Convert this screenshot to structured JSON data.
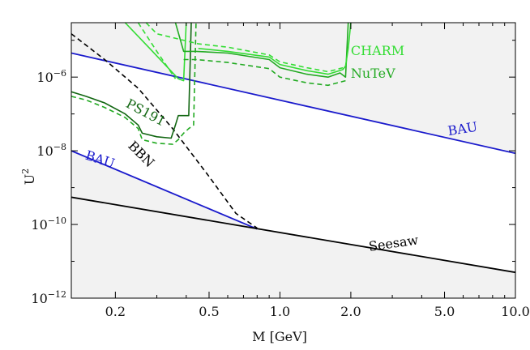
{
  "chart_data": {
    "type": "line",
    "title": "",
    "xlabel": "M [GeV]",
    "ylabel": "U",
    "ylabel_sup": "2",
    "x_scale": "log",
    "y_scale": "log",
    "xlim": [
      0.13,
      10.0
    ],
    "ylim": [
      1e-12,
      3e-05
    ],
    "grid": false,
    "x_ticks": [
      {
        "value": 0.2,
        "label": "0.2"
      },
      {
        "value": 0.5,
        "label": "0.5"
      },
      {
        "value": 1.0,
        "label": "1.0"
      },
      {
        "value": 2.0,
        "label": "2.0"
      },
      {
        "value": 5.0,
        "label": "5.0"
      },
      {
        "value": 10.0,
        "label": "10.0"
      }
    ],
    "y_ticks": [
      {
        "value": 1e-12,
        "base": "10",
        "exp": "−12"
      },
      {
        "value": 1e-10,
        "base": "10",
        "exp": "−10"
      },
      {
        "value": 1e-08,
        "base": "10",
        "exp": "−8"
      },
      {
        "value": 1e-06,
        "base": "10",
        "exp": "−6"
      }
    ],
    "colors": {
      "background_region": "#f2f2f2",
      "bau": "#1a1acc",
      "bbn": "#000000",
      "seesaw": "#000000",
      "charm": "#33dd33",
      "nutev": "#22aa22",
      "ps191": "#116611"
    },
    "series": [
      {
        "id": "bau-upper",
        "label": "BAU",
        "color": "#1a1acc",
        "dash": false,
        "points": [
          [
            0.13,
            4.5e-06
          ],
          [
            10.0,
            8.5e-09
          ]
        ]
      },
      {
        "id": "bau-lower",
        "label": "BAU",
        "color": "#1a1acc",
        "dash": false,
        "points": [
          [
            0.13,
            1e-08
          ],
          [
            0.8,
            7.5e-11
          ]
        ]
      },
      {
        "id": "seesaw",
        "label": "Seesaw",
        "color": "#000000",
        "dash": false,
        "points": [
          [
            0.13,
            5.5e-10
          ],
          [
            10.0,
            5e-12
          ]
        ]
      },
      {
        "id": "bbn",
        "label": "BBN",
        "color": "#000000",
        "dash": true,
        "points": [
          [
            0.13,
            1.5e-05
          ],
          [
            0.18,
            3e-06
          ],
          [
            0.25,
            5e-07
          ],
          [
            0.35,
            4e-08
          ],
          [
            0.5,
            2e-09
          ],
          [
            0.65,
            2e-10
          ],
          [
            0.8,
            8e-11
          ]
        ]
      },
      {
        "id": "ps191-solid",
        "label": "PS191",
        "color": "#116611",
        "dash": false,
        "points": [
          [
            0.13,
            4e-07
          ],
          [
            0.15,
            3e-07
          ],
          [
            0.18,
            2e-07
          ],
          [
            0.22,
            1e-07
          ],
          [
            0.25,
            5e-08
          ],
          [
            0.26,
            3e-08
          ],
          [
            0.3,
            2.4e-08
          ],
          [
            0.345,
            2.2e-08
          ],
          [
            0.36,
            5e-08
          ],
          [
            0.37,
            9e-08
          ],
          [
            0.39,
            9e-08
          ],
          [
            0.41,
            9e-08
          ],
          [
            0.42,
            3e-05
          ]
        ]
      },
      {
        "id": "ps191-dashed",
        "label": "",
        "color": "#22aa22",
        "dash": true,
        "points": [
          [
            0.13,
            3e-07
          ],
          [
            0.15,
            2.4e-07
          ],
          [
            0.18,
            1.5e-07
          ],
          [
            0.22,
            8e-08
          ],
          [
            0.25,
            4e-08
          ],
          [
            0.26,
            2e-08
          ],
          [
            0.3,
            1.6e-08
          ],
          [
            0.35,
            1.5e-08
          ],
          [
            0.37,
            2e-08
          ],
          [
            0.39,
            3e-08
          ],
          [
            0.41,
            4e-08
          ],
          [
            0.43,
            5e-08
          ],
          [
            0.44,
            3e-05
          ]
        ]
      },
      {
        "id": "charm-solid",
        "label": "CHARM",
        "color": "#33dd33",
        "dash": false,
        "points": [
          [
            0.22,
            3e-05
          ],
          [
            0.28,
            6e-06
          ],
          [
            0.37,
            9e-07
          ],
          [
            0.39,
            8e-07
          ],
          [
            0.4,
            3e-05
          ]
        ]
      },
      {
        "id": "charm-dashed",
        "label": "",
        "color": "#33dd33",
        "dash": true,
        "points": [
          [
            0.25,
            3e-05
          ],
          [
            0.3,
            5e-06
          ],
          [
            0.36,
            9e-07
          ]
        ]
      },
      {
        "id": "nutev-solid",
        "label": "NuTeV",
        "color": "#22aa22",
        "dash": false,
        "points": [
          [
            0.36,
            3e-05
          ],
          [
            0.39,
            5e-06
          ],
          [
            0.44,
            5e-06
          ],
          [
            0.6,
            4.5e-06
          ],
          [
            0.9,
            3e-06
          ],
          [
            1.0,
            1.8e-06
          ],
          [
            1.3,
            1.2e-06
          ],
          [
            1.6,
            1e-06
          ],
          [
            1.8,
            1.3e-06
          ],
          [
            1.9,
            1e-06
          ],
          [
            1.95,
            3e-05
          ]
        ]
      },
      {
        "id": "nutev-dashed",
        "label": "",
        "color": "#22aa22",
        "dash": true,
        "points": [
          [
            0.39,
            3e-06
          ],
          [
            0.44,
            3e-06
          ],
          [
            0.6,
            2.5e-06
          ],
          [
            0.9,
            1.7e-06
          ],
          [
            1.0,
            1e-06
          ],
          [
            1.3,
            7e-07
          ],
          [
            1.6,
            6e-07
          ],
          [
            1.9,
            8e-07
          ]
        ]
      },
      {
        "id": "charm-upper",
        "label": "",
        "color": "#33dd33",
        "dash": false,
        "points": [
          [
            0.45,
            6e-06
          ],
          [
            0.6,
            5e-06
          ],
          [
            0.9,
            3.5e-06
          ],
          [
            1.0,
            2.2e-06
          ],
          [
            1.3,
            1.5e-06
          ],
          [
            1.6,
            1.2e-06
          ],
          [
            1.85,
            1.6e-06
          ],
          [
            1.9,
            2e-06
          ],
          [
            1.95,
            6e-06
          ],
          [
            2.0,
            3e-05
          ]
        ]
      },
      {
        "id": "charm-upper-dashed",
        "label": "",
        "color": "#33dd33",
        "dash": true,
        "points": [
          [
            0.27,
            3e-05
          ],
          [
            0.3,
            1.5e-05
          ],
          [
            0.45,
            8e-06
          ],
          [
            0.6,
            6.5e-06
          ],
          [
            0.9,
            4e-06
          ],
          [
            1.0,
            2.6e-06
          ],
          [
            1.3,
            1.8e-06
          ],
          [
            1.6,
            1.4e-06
          ],
          [
            1.85,
            1.8e-06
          ]
        ]
      }
    ],
    "annotations": [
      {
        "text": "CHARM",
        "x": 2.0,
        "y": 4e-06,
        "color": "#33dd33",
        "rotate": 0
      },
      {
        "text": "NuTeV",
        "x": 2.0,
        "y": 9.5e-07,
        "color": "#22aa22",
        "rotate": 0
      },
      {
        "text": "BAU",
        "x": 5.2,
        "y": 2.6e-08,
        "color": "#1a1acc",
        "rotate": -9
      },
      {
        "text": "BAU",
        "x": 0.148,
        "y": 6e-09,
        "color": "#1a1acc",
        "rotate": 18
      },
      {
        "text": "PS191",
        "x": 0.22,
        "y": 1.6e-07,
        "color": "#116611",
        "rotate": 28
      },
      {
        "text": "BBN",
        "x": 0.225,
        "y": 1.3e-08,
        "color": "#000000",
        "rotate": 45
      },
      {
        "text": "Seesaw",
        "x": 2.4,
        "y": 1.9e-11,
        "color": "#000000",
        "rotate": -8
      }
    ]
  }
}
